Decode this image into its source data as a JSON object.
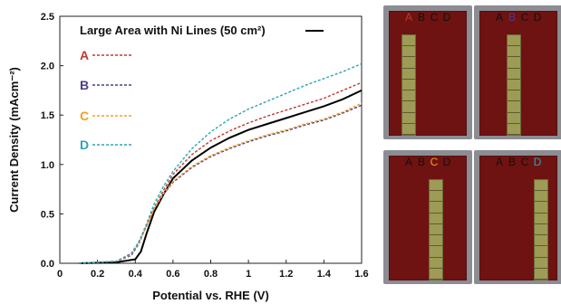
{
  "chart_data": {
    "type": "line",
    "xlabel": "Potential vs. RHE (V)",
    "ylabel": "Current Density (mAcm⁻²)",
    "xlim": [
      0,
      1.6
    ],
    "ylim": [
      0,
      2.5
    ],
    "xticks": [
      "0",
      "0.2",
      "0.4",
      "0.6",
      "0.8",
      "1",
      "1.2",
      "1.4",
      "1.6"
    ],
    "yticks": [
      "0.0",
      "0.5",
      "1.0",
      "1.5",
      "2.0",
      "2.5"
    ],
    "legend_title": "Large Area with Ni Lines (50 cm²)",
    "series": [
      {
        "name": "Large Area with Ni Lines (50 cm²)",
        "color": "#000000",
        "style": "solid",
        "x": [
          0.1,
          0.3,
          0.4,
          0.43,
          0.46,
          0.5,
          0.55,
          0.6,
          0.7,
          0.8,
          0.9,
          1.0,
          1.1,
          1.2,
          1.3,
          1.4,
          1.5,
          1.6
        ],
        "y": [
          0.0,
          0.01,
          0.04,
          0.12,
          0.3,
          0.52,
          0.7,
          0.86,
          1.04,
          1.17,
          1.27,
          1.35,
          1.41,
          1.47,
          1.53,
          1.59,
          1.66,
          1.75
        ]
      },
      {
        "name": "A",
        "color": "#c0392b",
        "style": "dashed",
        "x": [
          0.1,
          0.3,
          0.38,
          0.42,
          0.46,
          0.5,
          0.55,
          0.6,
          0.7,
          0.8,
          0.9,
          1.0,
          1.1,
          1.2,
          1.3,
          1.4,
          1.5,
          1.6
        ],
        "y": [
          0.0,
          0.02,
          0.08,
          0.2,
          0.38,
          0.56,
          0.74,
          0.9,
          1.1,
          1.24,
          1.34,
          1.42,
          1.49,
          1.55,
          1.61,
          1.67,
          1.75,
          1.83
        ]
      },
      {
        "name": "B",
        "color": "#4b3b8c",
        "style": "dashed",
        "x": [
          0.1,
          0.3,
          0.38,
          0.42,
          0.46,
          0.5,
          0.55,
          0.6,
          0.7,
          0.8,
          0.9,
          1.0,
          1.1,
          1.2,
          1.3,
          1.4,
          1.5,
          1.6
        ],
        "y": [
          0.0,
          0.02,
          0.1,
          0.22,
          0.38,
          0.55,
          0.7,
          0.82,
          0.97,
          1.08,
          1.16,
          1.23,
          1.29,
          1.34,
          1.4,
          1.45,
          1.52,
          1.6
        ]
      },
      {
        "name": "C",
        "color": "#f0a020",
        "style": "dashed",
        "x": [
          0.1,
          0.3,
          0.38,
          0.42,
          0.46,
          0.5,
          0.55,
          0.6,
          0.7,
          0.8,
          0.9,
          1.0,
          1.1,
          1.2,
          1.3,
          1.4,
          1.5,
          1.6
        ],
        "y": [
          0.0,
          0.02,
          0.09,
          0.21,
          0.37,
          0.55,
          0.71,
          0.83,
          0.98,
          1.09,
          1.17,
          1.24,
          1.3,
          1.35,
          1.41,
          1.46,
          1.53,
          1.62
        ]
      },
      {
        "name": "D",
        "color": "#2aa5b8",
        "style": "dashed",
        "x": [
          0.1,
          0.3,
          0.38,
          0.42,
          0.46,
          0.5,
          0.55,
          0.6,
          0.7,
          0.8,
          0.9,
          1.0,
          1.1,
          1.2,
          1.3,
          1.4,
          1.5,
          1.6
        ],
        "y": [
          0.0,
          0.02,
          0.09,
          0.22,
          0.4,
          0.6,
          0.78,
          0.93,
          1.16,
          1.33,
          1.46,
          1.56,
          1.64,
          1.72,
          1.8,
          1.87,
          1.94,
          2.02
        ]
      }
    ]
  },
  "photos": [
    {
      "labels": [
        "A",
        "B",
        "C",
        "D"
      ],
      "highlight": "A",
      "highlight_color": "#c0392b"
    },
    {
      "labels": [
        "A",
        "B",
        "C",
        "D"
      ],
      "highlight": "B",
      "highlight_color": "#4b3b8c"
    },
    {
      "labels": [
        "A",
        "B",
        "C",
        "D"
      ],
      "highlight": "C",
      "highlight_color": "#f0a020"
    },
    {
      "labels": [
        "A",
        "B",
        "C",
        "D"
      ],
      "highlight": "D",
      "highlight_color": "#2aa5b8"
    }
  ]
}
